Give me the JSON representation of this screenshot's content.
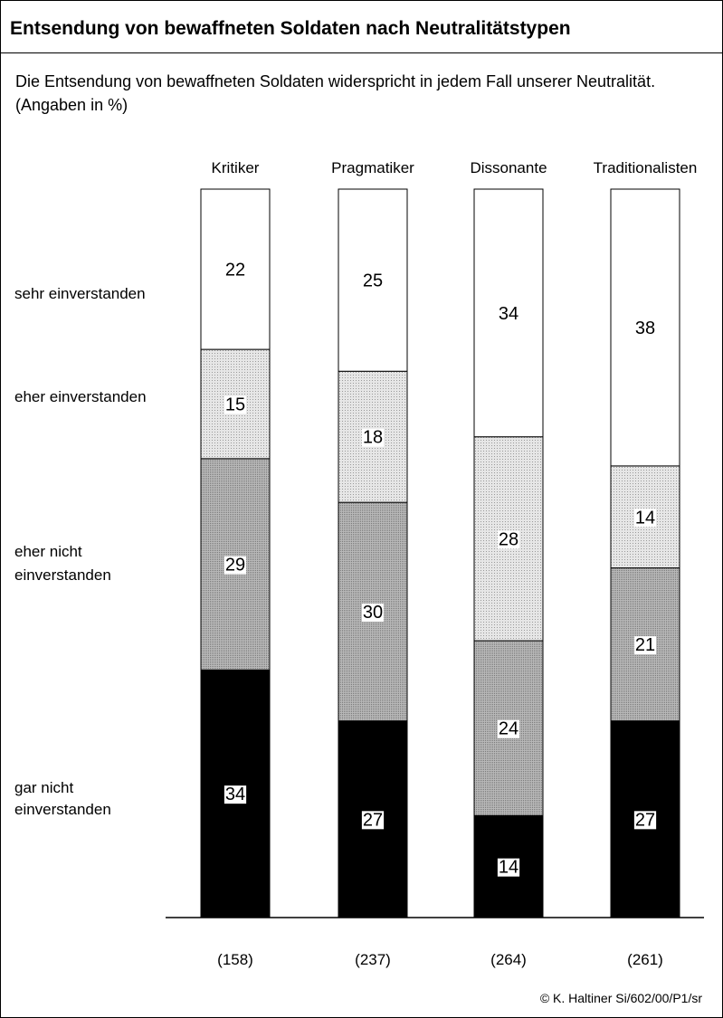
{
  "title": "Entsendung von bewaffneten Soldaten nach Neutralitätstypen",
  "subtitle": "Die Entsendung von bewaffneten Soldaten widerspricht in jedem Fall unserer Neutralität. (Angaben in %)",
  "footer": "© K. Haltiner  Si/602/00/P1/sr",
  "chart_data": {
    "type": "bar",
    "stacked": true,
    "categories": [
      "Kritiker",
      "Pragmatiker",
      "Dissonante",
      "Traditionalisten"
    ],
    "sample_sizes": [
      "(158)",
      "(237)",
      "(264)",
      "(261)"
    ],
    "series": [
      {
        "name": "gar nicht einverstanden",
        "label_lines": [
          "gar nicht",
          "einverstanden"
        ],
        "values": [
          34,
          27,
          14,
          27
        ],
        "color": "#000000"
      },
      {
        "name": "eher nicht einverstanden",
        "label_lines": [
          "eher nicht",
          "einverstanden"
        ],
        "values": [
          29,
          30,
          24,
          21
        ],
        "color": "#a9a9a9"
      },
      {
        "name": "eher einverstanden",
        "label_lines": [
          "eher einverstanden"
        ],
        "values": [
          15,
          18,
          28,
          14
        ],
        "color": "#dedede"
      },
      {
        "name": "sehr einverstanden",
        "label_lines": [
          "sehr einverstanden"
        ],
        "values": [
          22,
          25,
          34,
          38
        ],
        "color": "#ffffff"
      }
    ]
  }
}
